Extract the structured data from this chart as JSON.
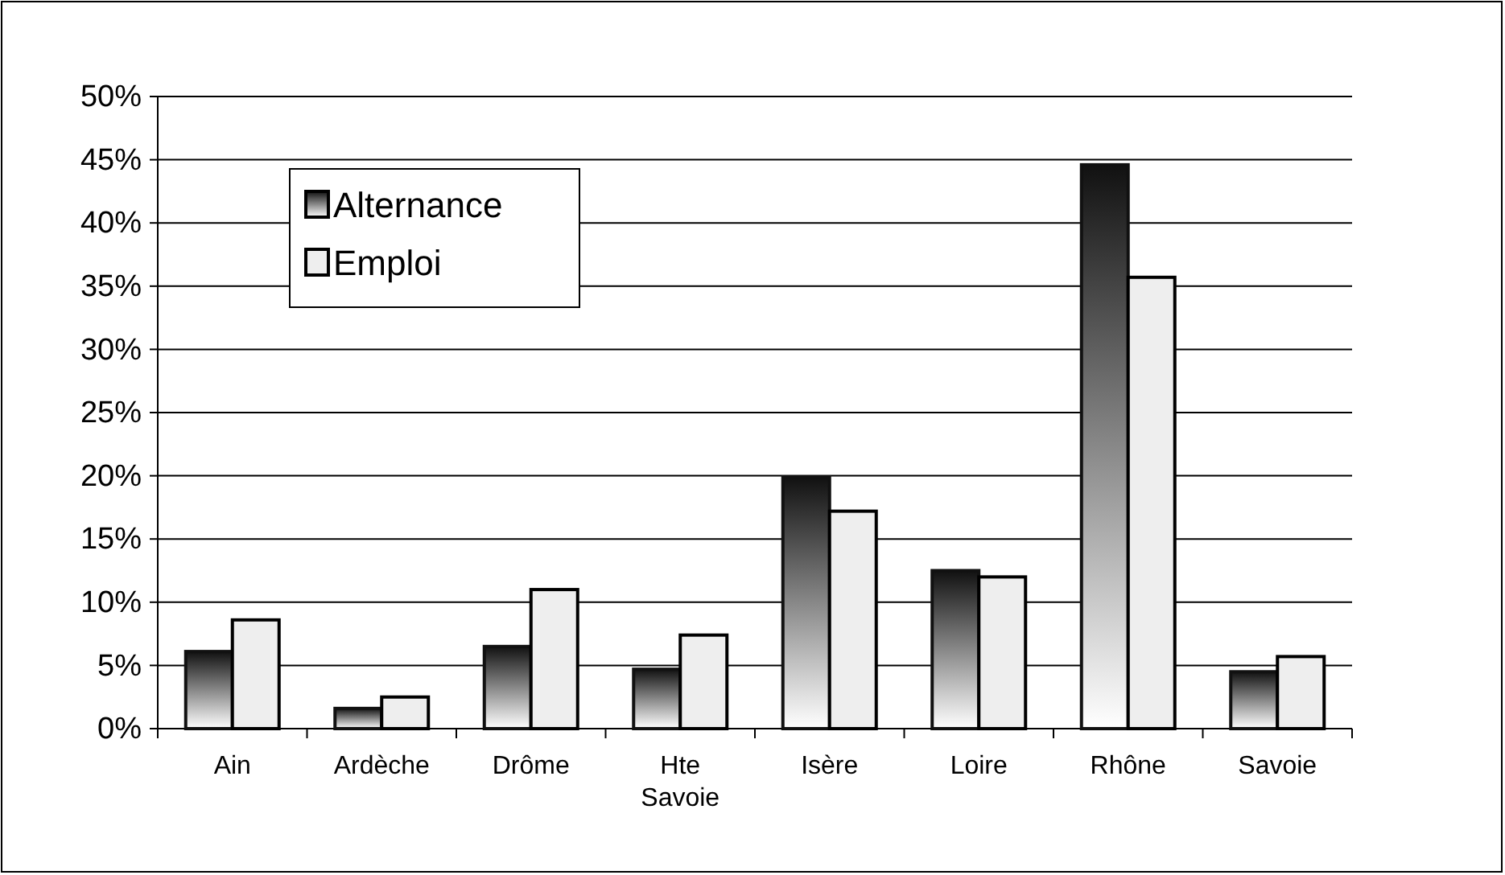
{
  "chart_data": {
    "type": "bar",
    "categories": [
      "Ain",
      "Ardèche",
      "Drôme",
      "Hte Savoie",
      "Isère",
      "Loire",
      "Rhône",
      "Savoie"
    ],
    "series": [
      {
        "name": "Alternance",
        "color": "#111111",
        "values": [
          6.1,
          1.6,
          6.5,
          4.7,
          19.9,
          12.5,
          44.6,
          4.5
        ]
      },
      {
        "name": "Emploi",
        "color": "#eeeeee",
        "values": [
          8.6,
          2.5,
          11.0,
          7.4,
          17.2,
          12.0,
          35.7,
          5.7
        ]
      }
    ],
    "ylim": [
      0,
      50
    ],
    "yticks": [
      {
        "value": 0,
        "label": "0%"
      },
      {
        "value": 5,
        "label": "5%"
      },
      {
        "value": 10,
        "label": "10%"
      },
      {
        "value": 15,
        "label": "15%"
      },
      {
        "value": 20,
        "label": "20%"
      },
      {
        "value": 25,
        "label": "25%"
      },
      {
        "value": 30,
        "label": "30%"
      },
      {
        "value": 35,
        "label": "35%"
      },
      {
        "value": 40,
        "label": "40%"
      },
      {
        "value": 45,
        "label": "45%"
      },
      {
        "value": 50,
        "label": "50%"
      }
    ],
    "grid": "y",
    "legend": "top left"
  }
}
